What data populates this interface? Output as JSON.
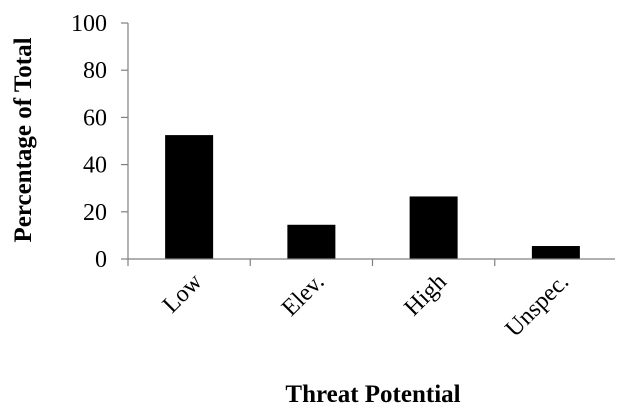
{
  "chart_data": {
    "type": "bar",
    "title": "",
    "xlabel": "Threat Potential",
    "ylabel": "Percentage of Total",
    "categories": [
      "Low",
      "Elev.",
      "High",
      "Unspec."
    ],
    "values": [
      52.5,
      14.5,
      26.5,
      5.5
    ],
    "ylim": [
      0,
      100
    ],
    "yticks": [
      "0",
      "20",
      "40",
      "60",
      "80",
      "100"
    ],
    "ytick_values": [
      0,
      20,
      40,
      60,
      80,
      100
    ],
    "grid": false,
    "legend": "none",
    "bar_color": "#000000",
    "axis_color": "#808080"
  }
}
